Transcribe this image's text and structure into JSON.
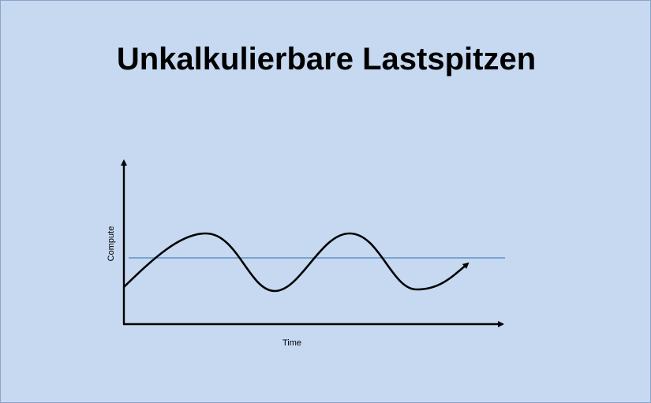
{
  "slide": {
    "title": "Unkalkulierbare Lastspitzen"
  },
  "diagram": {
    "y_axis_label": "Compute",
    "x_axis_label": "Time",
    "colors": {
      "background": "#c6d9f1",
      "curve": "#000000",
      "threshold_line": "#4f81bd",
      "axes": "#000000"
    }
  }
}
